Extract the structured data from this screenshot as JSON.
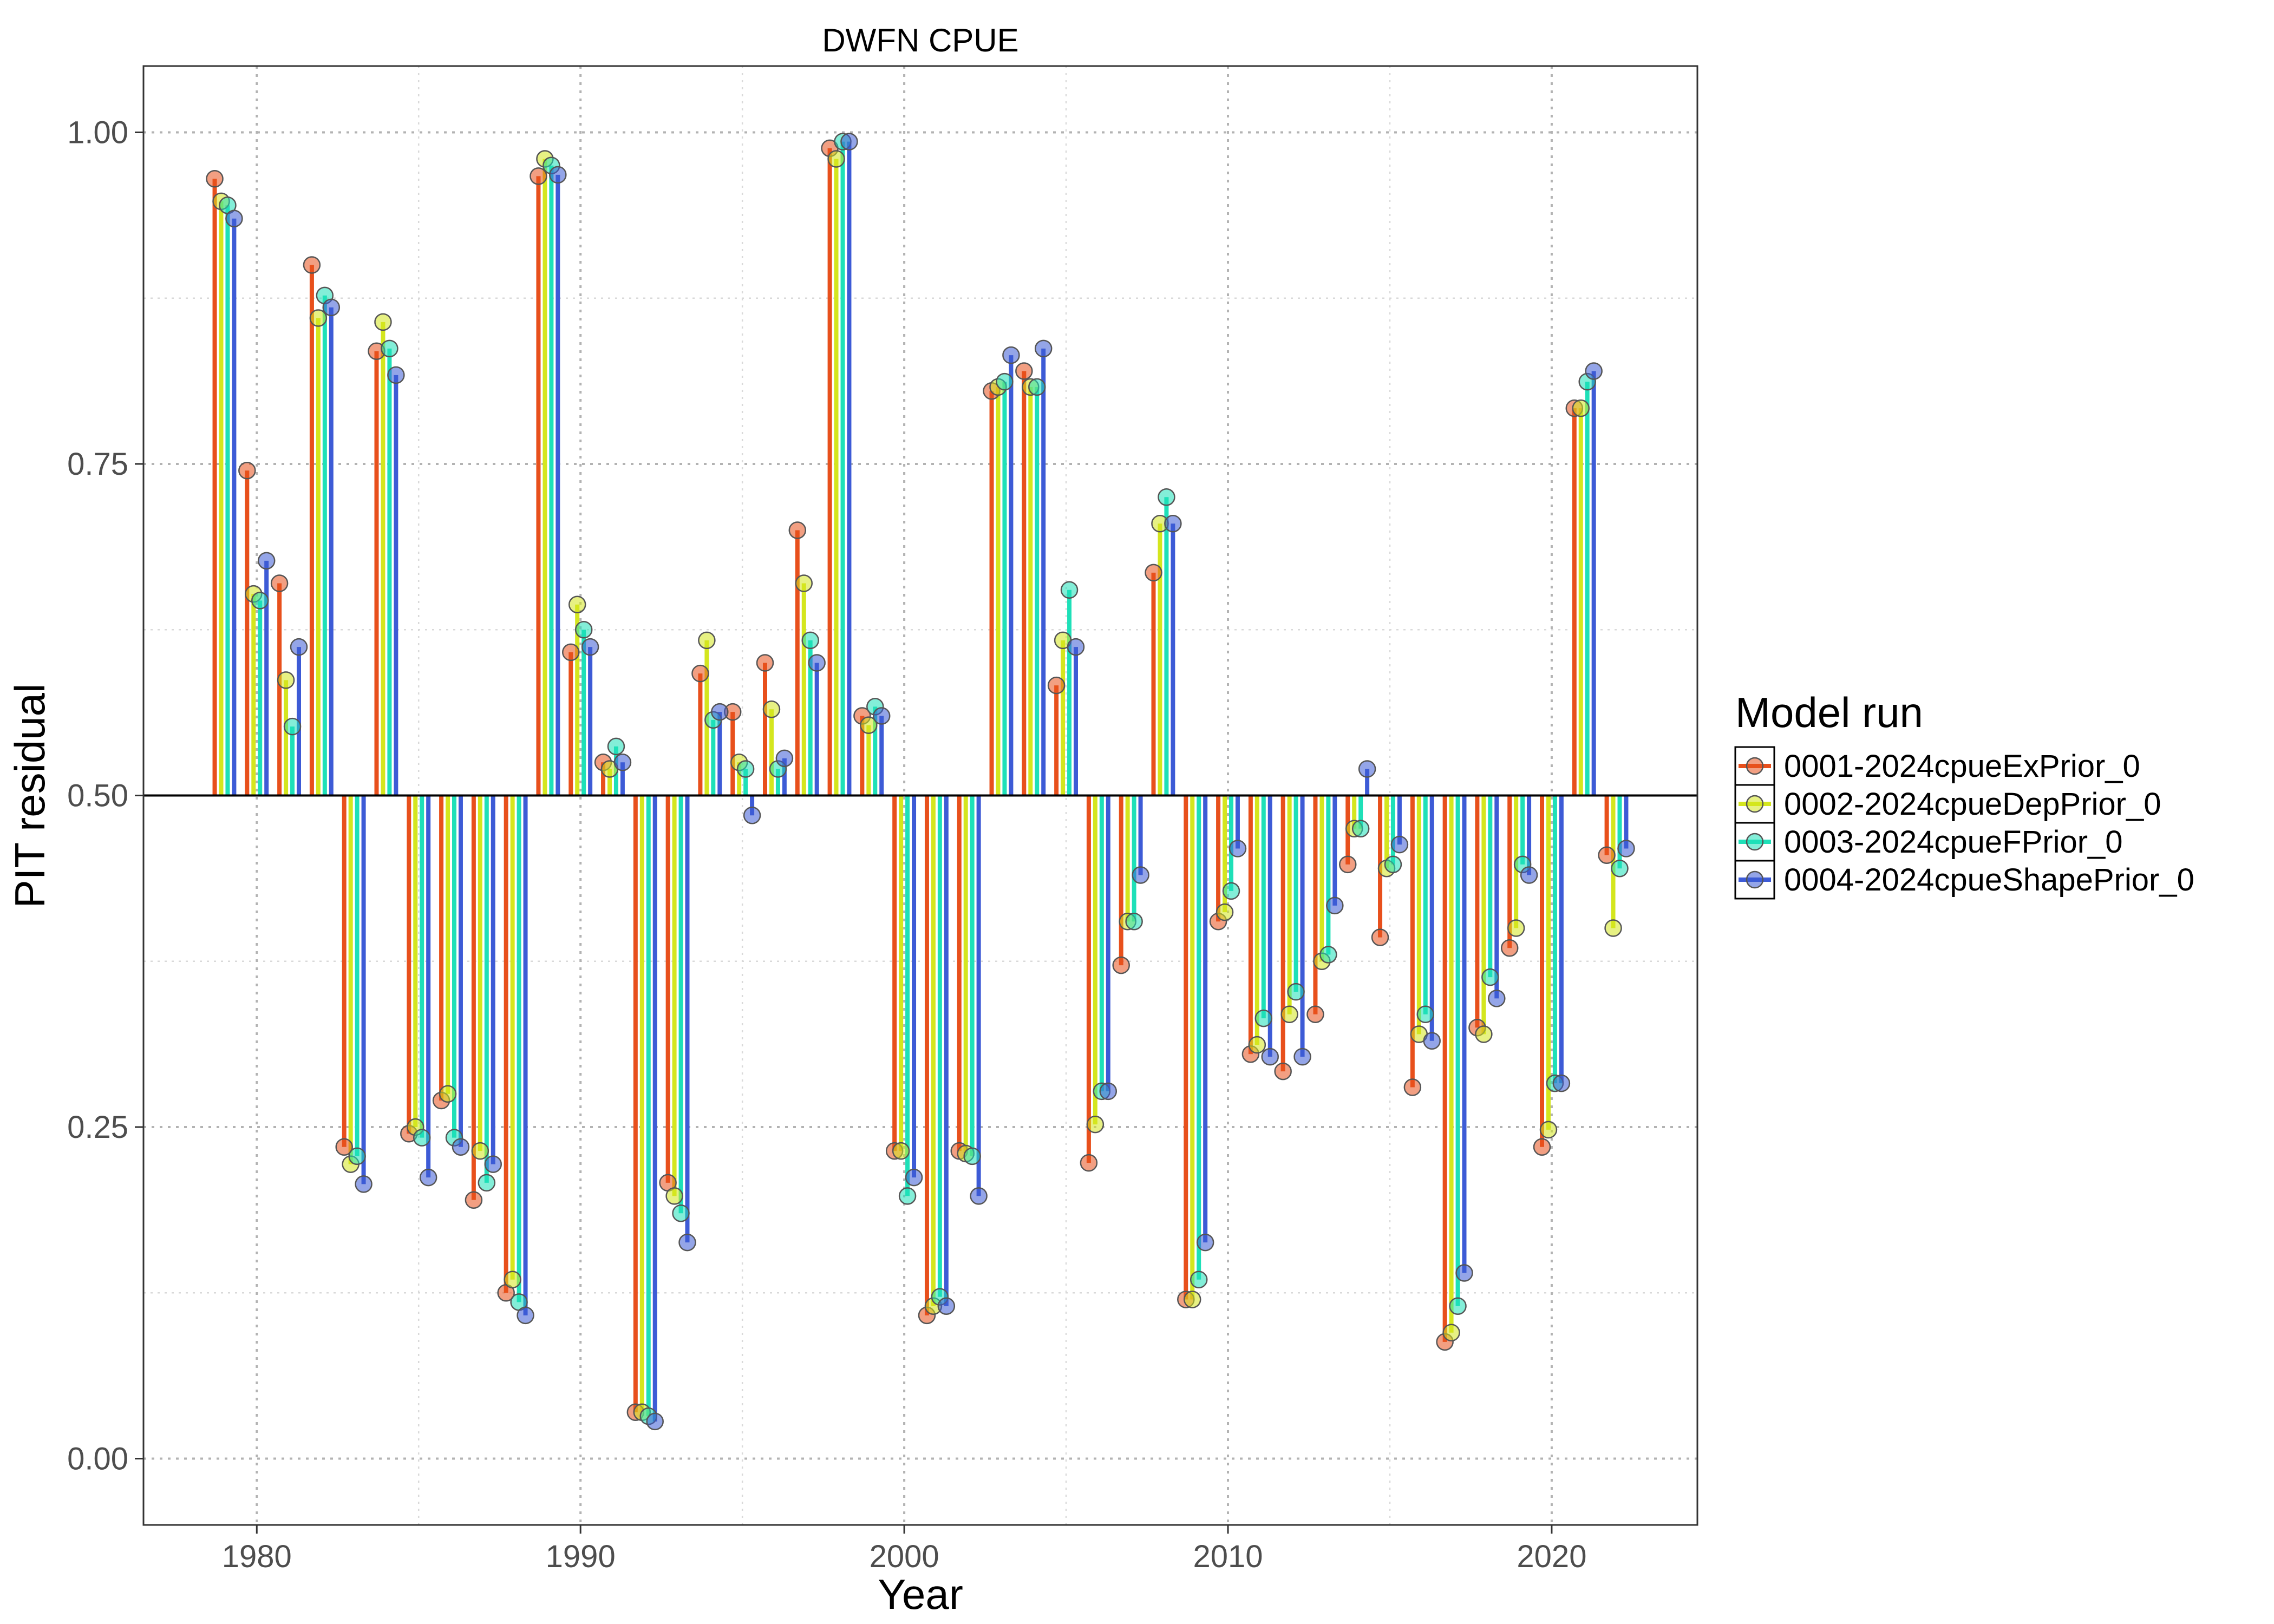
{
  "chart_data": {
    "type": "bar",
    "title": "DWFN CPUE",
    "xlabel": "Year",
    "ylabel": "PIT residual",
    "xlim": [
      1976.5,
      2024.5
    ],
    "ylim": [
      -0.05,
      1.05
    ],
    "baseline": 0.5,
    "x_ticks": [
      1980,
      1990,
      2000,
      2010,
      2020
    ],
    "x_tick_labels": [
      "1980",
      "1990",
      "2000",
      "2010",
      "2020"
    ],
    "y_ticks": [
      0,
      0.25,
      0.5,
      0.75,
      1.0
    ],
    "y_tick_labels": [
      "0.00",
      "0.25",
      "0.50",
      "0.75",
      "1.00"
    ],
    "grid": true,
    "legend_title": "Model run",
    "legend_position": "right",
    "x": [
      1979,
      1980,
      1981,
      1982,
      1983,
      1984,
      1985,
      1986,
      1987,
      1988,
      1989,
      1990,
      1991,
      1992,
      1993,
      1994,
      1995,
      1996,
      1997,
      1998,
      1999,
      2000,
      2001,
      2002,
      2003,
      2004,
      2005,
      2006,
      2007,
      2008,
      2009,
      2010,
      2011,
      2012,
      2013,
      2014,
      2015,
      2016,
      2017,
      2018,
      2019,
      2020,
      2021,
      2022
    ],
    "series": [
      {
        "name": "0001-2024cpueExPrior_0",
        "color": "#e8501c",
        "values": [
          0.965,
          0.745,
          0.66,
          0.9,
          0.235,
          0.835,
          0.245,
          0.27,
          0.195,
          0.125,
          0.967,
          0.608,
          0.525,
          0.035,
          0.208,
          0.592,
          0.563,
          0.6,
          0.7,
          0.988,
          0.56,
          0.232,
          0.108,
          0.232,
          0.805,
          0.82,
          0.583,
          0.223,
          0.372,
          0.668,
          0.12,
          0.405,
          0.305,
          0.292,
          0.335,
          0.448,
          0.393,
          0.28,
          0.088,
          0.325,
          0.385,
          0.235,
          0.792,
          0.455
        ]
      },
      {
        "name": "0002-2024cpueDepPrior_0",
        "color": "#d4e61e",
        "values": [
          0.948,
          0.652,
          0.587,
          0.86,
          0.222,
          0.857,
          0.25,
          0.275,
          0.232,
          0.135,
          0.98,
          0.644,
          0.52,
          0.035,
          0.198,
          0.617,
          0.525,
          0.565,
          0.66,
          0.98,
          0.553,
          0.232,
          0.115,
          0.23,
          0.808,
          0.808,
          0.617,
          0.252,
          0.405,
          0.705,
          0.12,
          0.412,
          0.312,
          0.335,
          0.375,
          0.475,
          0.445,
          0.32,
          0.095,
          0.32,
          0.4,
          0.248,
          0.792,
          0.4
        ]
      },
      {
        "name": "0003-2024cpueFPrior_0",
        "color": "#1ee0b8",
        "values": [
          0.945,
          0.647,
          0.552,
          0.877,
          0.228,
          0.837,
          0.242,
          0.242,
          0.208,
          0.118,
          0.975,
          0.625,
          0.537,
          0.032,
          0.185,
          0.557,
          0.52,
          0.52,
          0.617,
          0.993,
          0.567,
          0.198,
          0.122,
          0.228,
          0.812,
          0.808,
          0.655,
          0.277,
          0.405,
          0.725,
          0.135,
          0.428,
          0.332,
          0.352,
          0.38,
          0.475,
          0.448,
          0.335,
          0.115,
          0.363,
          0.448,
          0.283,
          0.812,
          0.445
        ]
      },
      {
        "name": "0004-2024cpueShapePrior_0",
        "color": "#3d5bd6",
        "values": [
          0.935,
          0.677,
          0.612,
          0.868,
          0.207,
          0.817,
          0.212,
          0.235,
          0.222,
          0.108,
          0.968,
          0.612,
          0.525,
          0.028,
          0.163,
          0.563,
          0.485,
          0.528,
          0.6,
          0.993,
          0.56,
          0.212,
          0.115,
          0.198,
          0.832,
          0.837,
          0.612,
          0.277,
          0.44,
          0.705,
          0.163,
          0.46,
          0.303,
          0.303,
          0.417,
          0.52,
          0.463,
          0.315,
          0.14,
          0.347,
          0.44,
          0.283,
          0.82,
          0.46
        ]
      }
    ]
  }
}
